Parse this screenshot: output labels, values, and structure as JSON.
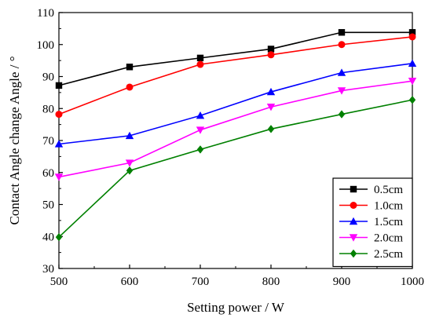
{
  "chart_data": {
    "type": "line",
    "title": "",
    "xlabel": "Setting power / W",
    "ylabel": "Contact Angle change Angle / °",
    "xlim": [
      500,
      1000
    ],
    "ylim": [
      30,
      110
    ],
    "xticks": [
      500,
      600,
      700,
      800,
      900,
      1000
    ],
    "yticks": [
      30,
      40,
      50,
      60,
      70,
      80,
      90,
      100,
      110
    ],
    "legend_position": "bottom-right",
    "grid": false,
    "x": [
      500,
      600,
      700,
      800,
      900,
      1000
    ],
    "series": [
      {
        "name": "0.5cm",
        "color": "#000000",
        "marker": "square",
        "values": [
          87.2,
          93.0,
          95.8,
          98.6,
          103.8,
          103.8
        ]
      },
      {
        "name": "1.0cm",
        "color": "#ff0000",
        "marker": "circle",
        "values": [
          78.2,
          86.7,
          93.8,
          96.8,
          100.0,
          102.4
        ]
      },
      {
        "name": "1.5cm",
        "color": "#0000ff",
        "marker": "triangle-up",
        "values": [
          68.9,
          71.5,
          77.8,
          85.2,
          91.2,
          94.1
        ]
      },
      {
        "name": "2.0cm",
        "color": "#ff00ff",
        "marker": "triangle-down",
        "values": [
          58.6,
          63.0,
          73.3,
          80.5,
          85.6,
          88.6
        ]
      },
      {
        "name": "2.5cm",
        "color": "#008000",
        "marker": "diamond",
        "values": [
          39.8,
          60.6,
          67.2,
          73.6,
          78.2,
          82.7
        ]
      }
    ]
  }
}
